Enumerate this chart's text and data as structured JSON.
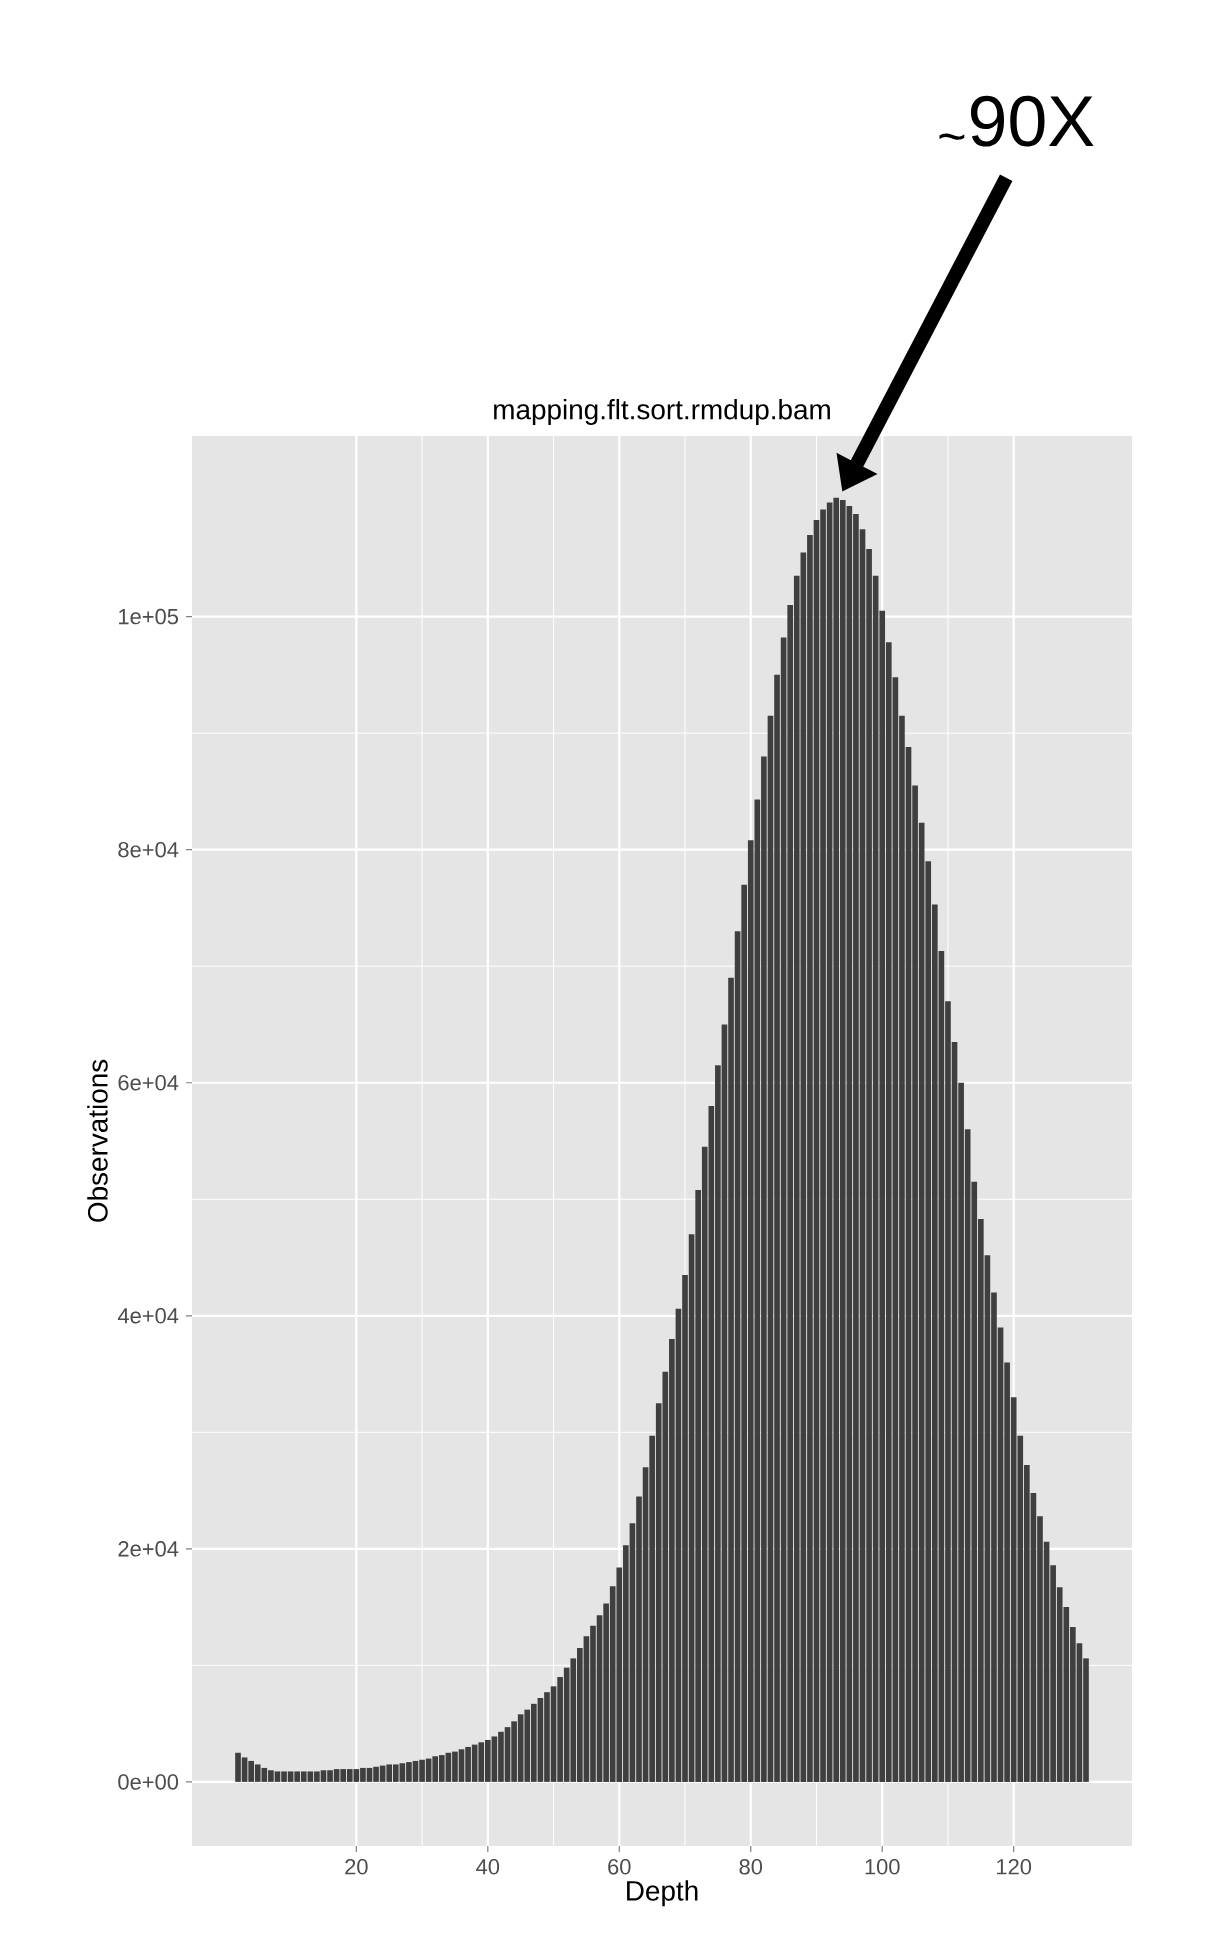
{
  "chart_data": {
    "type": "bar",
    "title": "mapping.flt.sort.rmdup.bam",
    "xlabel": "Depth",
    "ylabel": "Observations",
    "x": [
      2,
      3,
      4,
      5,
      6,
      7,
      8,
      9,
      10,
      11,
      12,
      13,
      14,
      15,
      16,
      17,
      18,
      19,
      20,
      21,
      22,
      23,
      24,
      25,
      26,
      27,
      28,
      29,
      30,
      31,
      32,
      33,
      34,
      35,
      36,
      37,
      38,
      39,
      40,
      41,
      42,
      43,
      44,
      45,
      46,
      47,
      48,
      49,
      50,
      51,
      52,
      53,
      54,
      55,
      56,
      57,
      58,
      59,
      60,
      61,
      62,
      63,
      64,
      65,
      66,
      67,
      68,
      69,
      70,
      71,
      72,
      73,
      74,
      75,
      76,
      77,
      78,
      79,
      80,
      81,
      82,
      83,
      84,
      85,
      86,
      87,
      88,
      89,
      90,
      91,
      92,
      93,
      94,
      95,
      96,
      97,
      98,
      99,
      100,
      101,
      102,
      103,
      104,
      105,
      106,
      107,
      108,
      109,
      110,
      111,
      112,
      113,
      114,
      115,
      116,
      117,
      118,
      119,
      120,
      121,
      122,
      123,
      124,
      125,
      126,
      127,
      128,
      129,
      130,
      131
    ],
    "values": [
      2500,
      2100,
      1800,
      1500,
      1200,
      1000,
      900,
      900,
      900,
      900,
      900,
      900,
      900,
      1000,
      1000,
      1100,
      1100,
      1100,
      1100,
      1200,
      1200,
      1300,
      1400,
      1500,
      1500,
      1600,
      1700,
      1800,
      1900,
      2000,
      2200,
      2300,
      2500,
      2600,
      2800,
      3000,
      3200,
      3400,
      3600,
      3900,
      4300,
      4700,
      5200,
      5800,
      6200,
      6700,
      7200,
      7700,
      8200,
      9000,
      9800,
      10600,
      11500,
      12500,
      13400,
      14300,
      15300,
      16800,
      18400,
      20300,
      22200,
      24500,
      27000,
      29700,
      32500,
      35200,
      38000,
      40600,
      43500,
      47000,
      50800,
      54500,
      58000,
      61500,
      65000,
      69000,
      73000,
      77000,
      80800,
      84300,
      88000,
      91500,
      95000,
      98200,
      101000,
      103500,
      105500,
      107000,
      108300,
      109200,
      109800,
      110200,
      110000,
      109500,
      108800,
      107500,
      105800,
      103500,
      100500,
      97800,
      94800,
      91500,
      88800,
      85500,
      82300,
      79000,
      75300,
      71300,
      67000,
      63500,
      60000,
      56000,
      51500,
      48300,
      45200,
      42000,
      39000,
      36000,
      33000,
      29700,
      27200,
      24800,
      22800,
      20600,
      18600,
      16700,
      15000,
      13300,
      11900,
      10600
    ],
    "color": "#3f3f3f",
    "xlim": [
      -5,
      138
    ],
    "ylim": [
      -5500,
      115500
    ],
    "xticks": [
      20,
      40,
      60,
      80,
      100,
      120
    ],
    "yticks": [
      {
        "value": 0,
        "label": "0e+00"
      },
      {
        "value": 20000,
        "label": "2e+04"
      },
      {
        "value": 40000,
        "label": "4e+04"
      },
      {
        "value": 60000,
        "label": "6e+04"
      },
      {
        "value": 80000,
        "label": "8e+04"
      },
      {
        "value": 100000,
        "label": "1e+05"
      }
    ],
    "grid": true,
    "annotations": [
      "$_{~}$90X"
    ]
  }
}
